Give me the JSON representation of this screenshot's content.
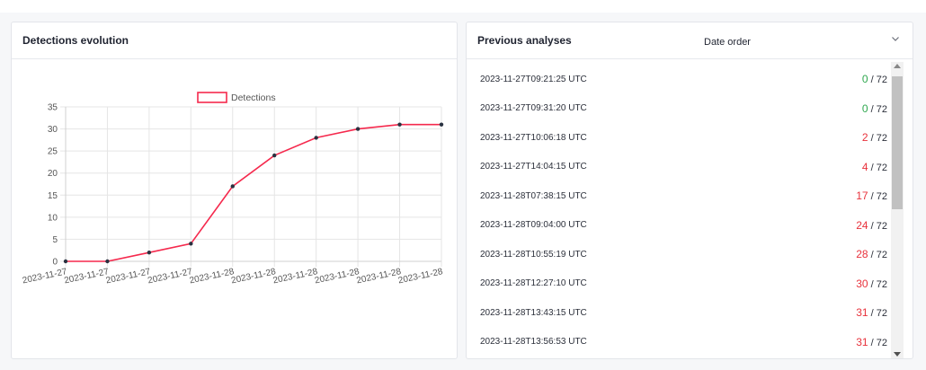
{
  "colors": {
    "good": "#2fa84f",
    "bad": "#e8323c",
    "line": "#f5294d",
    "marker": "#2a3140"
  },
  "left_panel": {
    "title": "Detections evolution"
  },
  "right_panel": {
    "title": "Previous analyses",
    "sort_label": "Date order",
    "analyses": [
      {
        "date": "2023-11-27T09:21:25 UTC",
        "detections": "0",
        "total": " / 72",
        "status": "good"
      },
      {
        "date": "2023-11-27T09:31:20 UTC",
        "detections": "0",
        "total": " / 72",
        "status": "good"
      },
      {
        "date": "2023-11-27T10:06:18 UTC",
        "detections": "2",
        "total": " / 72",
        "status": "bad"
      },
      {
        "date": "2023-11-27T14:04:15 UTC",
        "detections": "4",
        "total": " / 72",
        "status": "bad"
      },
      {
        "date": "2023-11-28T07:38:15 UTC",
        "detections": "17",
        "total": " / 72",
        "status": "bad"
      },
      {
        "date": "2023-11-28T09:04:00 UTC",
        "detections": "24",
        "total": " / 72",
        "status": "bad"
      },
      {
        "date": "2023-11-28T10:55:19 UTC",
        "detections": "28",
        "total": " / 72",
        "status": "bad"
      },
      {
        "date": "2023-11-28T12:27:10 UTC",
        "detections": "30",
        "total": " / 72",
        "status": "bad"
      },
      {
        "date": "2023-11-28T13:43:15 UTC",
        "detections": "31",
        "total": " / 72",
        "status": "bad"
      },
      {
        "date": "2023-11-28T13:56:53 UTC",
        "detections": "31",
        "total": " / 72",
        "status": "bad"
      }
    ]
  },
  "chart_data": {
    "type": "line",
    "title": "",
    "legend": {
      "position": "top",
      "entries": [
        "Detections"
      ]
    },
    "series": [
      {
        "name": "Detections",
        "values": [
          0,
          0,
          2,
          4,
          17,
          24,
          28,
          30,
          31,
          31
        ]
      }
    ],
    "categories": [
      "2023-11-27",
      "2023-11-27",
      "2023-11-27",
      "2023-11-27",
      "2023-11-28",
      "2023-11-28",
      "2023-11-28",
      "2023-11-28",
      "2023-11-28",
      "2023-11-28"
    ],
    "ylim": [
      0,
      35
    ],
    "yticks": [
      "0",
      "5",
      "10",
      "15",
      "20",
      "25",
      "30",
      "35"
    ],
    "grid": true
  }
}
